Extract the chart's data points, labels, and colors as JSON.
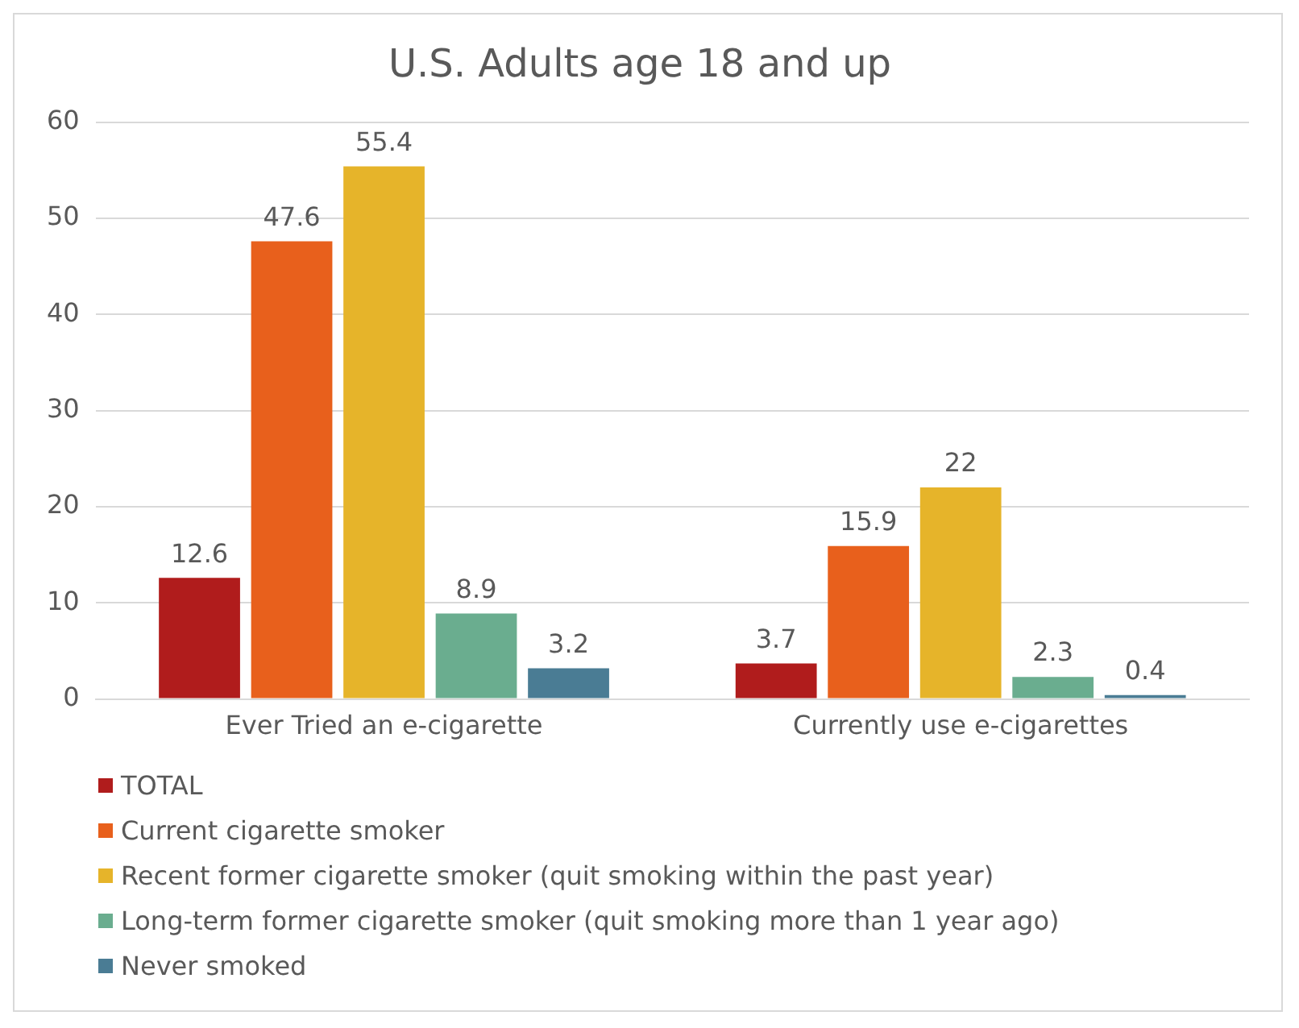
{
  "chart_data": {
    "type": "bar",
    "title": "U.S. Adults age 18 and up",
    "categories": [
      "Ever Tried an e-cigarette",
      "Currently use e-cigarettes"
    ],
    "series": [
      {
        "name": "TOTAL",
        "color": "#b01c1c",
        "values": [
          12.6,
          3.7
        ]
      },
      {
        "name": "Current cigarette smoker",
        "color": "#e8601c",
        "values": [
          47.6,
          15.9
        ]
      },
      {
        "name": "Recent former cigarette smoker (quit smoking within the past year)",
        "color": "#e6b42a",
        "values": [
          55.4,
          22
        ]
      },
      {
        "name": "Long-term former cigarette smoker (quit smoking more than 1 year ago)",
        "color": "#6aad8f",
        "values": [
          8.9,
          2.3
        ]
      },
      {
        "name": "Never smoked",
        "color": "#4a7c94",
        "values": [
          3.2,
          0.4
        ]
      }
    ],
    "ylim": [
      0,
      60
    ],
    "yticks": [
      0,
      10,
      20,
      30,
      40,
      50,
      60
    ],
    "grid": "y",
    "legend": "bottom",
    "data_labels": true
  }
}
